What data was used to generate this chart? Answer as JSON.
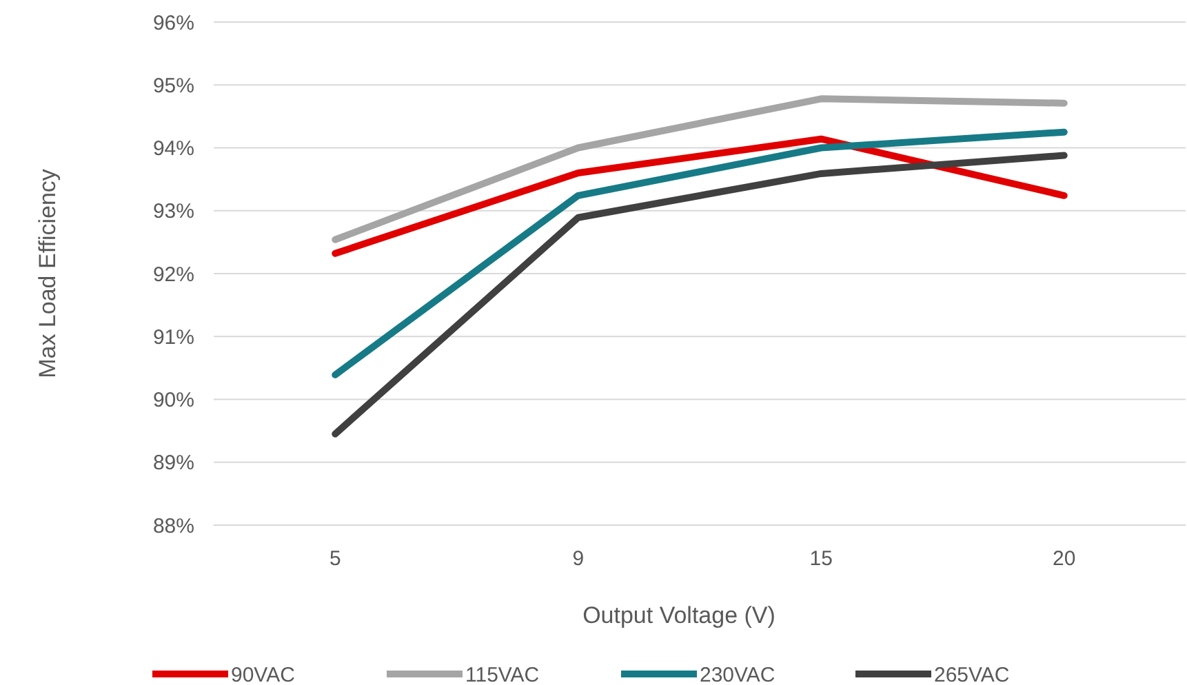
{
  "chart_data": {
    "type": "line",
    "xlabel": "Output Voltage (V)",
    "ylabel": "Max Load Efficiency",
    "categories": [
      "5",
      "9",
      "15",
      "20"
    ],
    "series": [
      {
        "name": "90VAC",
        "color": "#e00000",
        "values": [
          92.32,
          93.6,
          94.14,
          93.24
        ]
      },
      {
        "name": "115VAC",
        "color": "#a5a5a5",
        "values": [
          92.54,
          94.0,
          94.78,
          94.71
        ]
      },
      {
        "name": "230VAC",
        "color": "#167b87",
        "values": [
          90.39,
          93.24,
          94.0,
          94.25
        ]
      },
      {
        "name": "265VAC",
        "color": "#404040",
        "values": [
          89.45,
          92.89,
          93.59,
          93.88
        ]
      }
    ],
    "ylim": [
      88,
      96
    ],
    "yticks": [
      {
        "value": 88,
        "label": "88%"
      },
      {
        "value": 89,
        "label": "89%"
      },
      {
        "value": 90,
        "label": "90%"
      },
      {
        "value": 91,
        "label": "91%"
      },
      {
        "value": 92,
        "label": "92%"
      },
      {
        "value": 93,
        "label": "93%"
      },
      {
        "value": 94,
        "label": "94%"
      },
      {
        "value": 95,
        "label": "95%"
      },
      {
        "value": 96,
        "label": "96%"
      }
    ],
    "grid": "y",
    "legend": "bottom",
    "marker": "none",
    "line_style": "solid"
  }
}
